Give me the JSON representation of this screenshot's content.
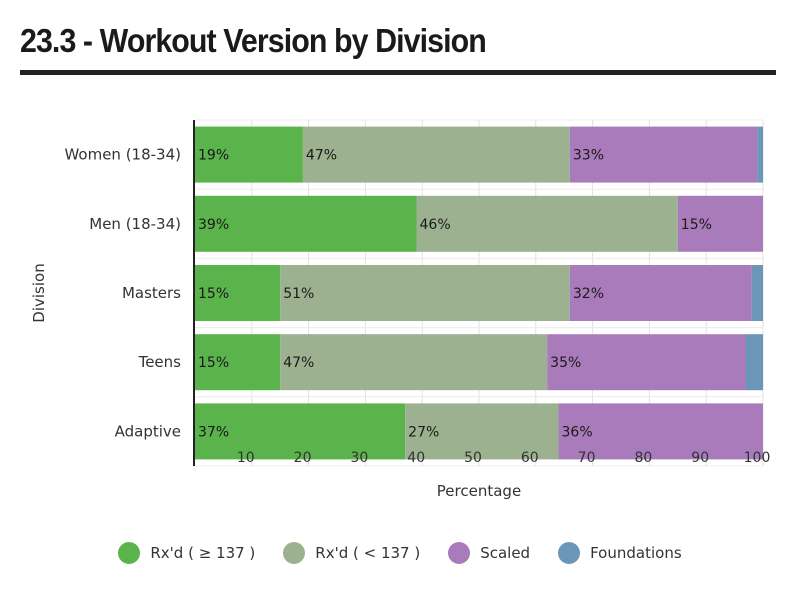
{
  "title": "23.3 - Workout Version by Division",
  "chart_data": {
    "type": "bar",
    "orientation": "horizontal",
    "stacked": true,
    "categories": [
      "Women (18-34)",
      "Men (18-34)",
      "Masters",
      "Teens",
      "Adaptive"
    ],
    "series": [
      {
        "name": "Rx'd ( ≥ 137 )",
        "color": "#5ab34b",
        "values": [
          19,
          39,
          15,
          15,
          37
        ],
        "labels": [
          "19%",
          "39%",
          "15%",
          "15%",
          "37%"
        ]
      },
      {
        "name": "Rx'd ( < 137 )",
        "color": "#9bb18f",
        "values": [
          47,
          46,
          51,
          47,
          27
        ],
        "labels": [
          "47%",
          "46%",
          "51%",
          "47%",
          "27%"
        ]
      },
      {
        "name": "Scaled",
        "color": "#a97bbb",
        "values": [
          33,
          15,
          32,
          35,
          36
        ],
        "labels": [
          "33%",
          "15%",
          "32%",
          "35%",
          "36%"
        ]
      },
      {
        "name": "Foundations",
        "color": "#6b96b7",
        "values": [
          1,
          0,
          2,
          3,
          0
        ],
        "labels": [
          "",
          "",
          "",
          "",
          ""
        ]
      }
    ],
    "xlabel": "Percentage",
    "ylabel": "Division",
    "xlim": [
      0,
      100
    ],
    "xticks": [
      10,
      20,
      30,
      40,
      50,
      60,
      70,
      80,
      90,
      100
    ],
    "grid": true,
    "legend": "bottom"
  }
}
